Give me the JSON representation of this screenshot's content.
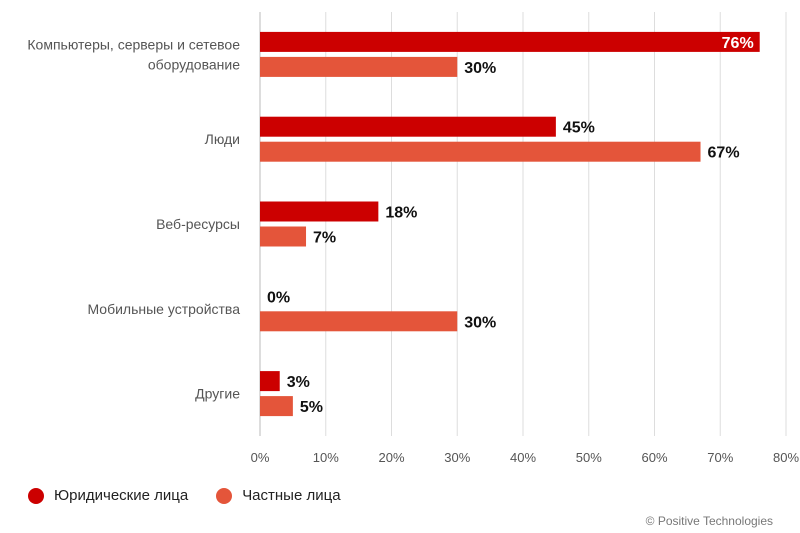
{
  "chart_data": {
    "type": "bar",
    "orientation": "horizontal",
    "categories": [
      [
        "Компьютеры, серверы и сетевое",
        "оборудование"
      ],
      [
        "Люди"
      ],
      [
        "Веб-ресурсы"
      ],
      [
        "Мобильные устройства"
      ],
      [
        "Другие"
      ]
    ],
    "series": [
      {
        "name": "Юридические лица",
        "color": "#cc0000",
        "values": [
          76,
          45,
          18,
          0,
          3
        ]
      },
      {
        "name": "Частные лица",
        "color": "#e4553a",
        "values": [
          30,
          67,
          7,
          30,
          5
        ]
      }
    ],
    "value_labels": [
      [
        "76%",
        "45%",
        "18%",
        "0%",
        "3%"
      ],
      [
        "30%",
        "67%",
        "7%",
        "30%",
        "5%"
      ]
    ],
    "xticks": [
      0,
      10,
      20,
      30,
      40,
      50,
      60,
      70,
      80
    ],
    "xtick_labels": [
      "0%",
      "10%",
      "20%",
      "30%",
      "40%",
      "50%",
      "60%",
      "70%",
      "80%"
    ],
    "xlim": [
      0,
      80
    ],
    "grid": true,
    "legend_position": "bottom-left"
  },
  "legend": {
    "items": [
      {
        "label": "Юридические лица",
        "color": "#cc0000"
      },
      {
        "label": "Частные лица",
        "color": "#e4553a"
      }
    ]
  },
  "footer": {
    "copyright": "© Positive Technologies"
  }
}
